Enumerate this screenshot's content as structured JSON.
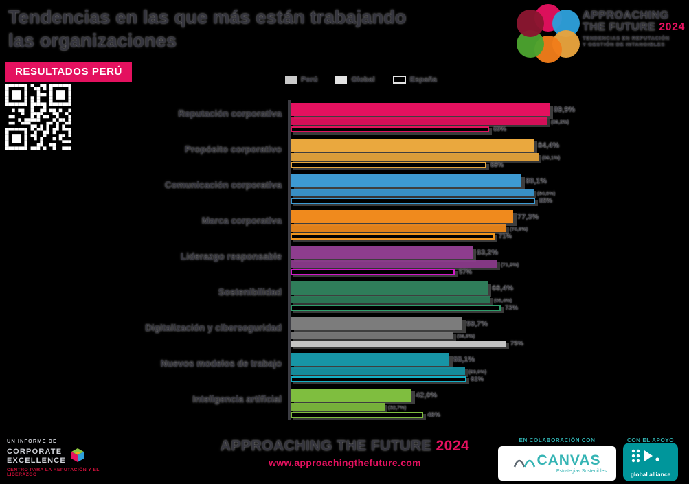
{
  "header": {
    "title_line1": "Tendencias en las que más están trabajando",
    "title_line2": "las organizaciones",
    "badge": "RESULTADOS PERÚ"
  },
  "brand_logo": {
    "line1": "APPROACHING",
    "line2": "THE FUTURE",
    "year": "2024",
    "tagline_line1": "TENDENCIAS EN REPUTACIÓN",
    "tagline_line2": "Y GESTIÓN DE INTANGIBLES",
    "petal_colors": [
      "#E4115F",
      "#2E9FDA",
      "#E8A33D",
      "#F07D1A",
      "#4CA32F",
      "#8A1630"
    ]
  },
  "chart_data": {
    "type": "bar",
    "orientation": "horizontal",
    "legend": [
      "Perú",
      "Global",
      "España"
    ],
    "legend_position": "top",
    "grid": false,
    "xlim": [
      0,
      100
    ],
    "categories": [
      "Reputación corporativa",
      "Propósito corporativo",
      "Comunicación corporativa",
      "Marca corporativa",
      "Liderazgo responsable",
      "Sostenibilidad",
      "Digitalización y ciberseguridad",
      "Nuevos modelos de trabajo",
      "Inteligencia artificial"
    ],
    "series": [
      {
        "name": "Perú",
        "values": [
          89.9,
          84.4,
          80.1,
          77.3,
          63.2,
          68.4,
          59.7,
          55.1,
          42.0
        ],
        "labels": [
          "89,9%",
          "84,4%",
          "80,1%",
          "77,3%",
          "63,2%",
          "68,4%",
          "59,7%",
          "55,1%",
          "42,0%"
        ]
      },
      {
        "name": "Global",
        "values": [
          89.2,
          86.1,
          84.6,
          74.9,
          71.8,
          69.4,
          56.5,
          60.6,
          32.7
        ],
        "labels": [
          "(89,2%)",
          "(86,1%)",
          "(84,6%)",
          "(74,9%)",
          "(71,8%)",
          "(69,4%)",
          "(56,5%)",
          "(60,6%)",
          "(32,7%)"
        ]
      },
      {
        "name": "España",
        "values": [
          69,
          68,
          85,
          71,
          57,
          73,
          75,
          61,
          46
        ],
        "labels": [
          "69%",
          "68%",
          "85%",
          "71%",
          "57%",
          "73%",
          "75%",
          "61%",
          "46%"
        ]
      }
    ],
    "colors": [
      {
        "main": "#E4115F",
        "espana": "#E4115F",
        "espana_filled": false
      },
      {
        "main": "#EAA83E",
        "espana": "#EAA83E",
        "espana_filled": false
      },
      {
        "main": "#3D9AD3",
        "espana": "#3D9AD3",
        "espana_filled": false
      },
      {
        "main": "#F08A1D",
        "espana": "#F0951D",
        "espana_filled": false
      },
      {
        "main": "#8E3D8E",
        "espana": "#D018C8",
        "espana_filled": false
      },
      {
        "main": "#2F7D5A",
        "espana": "#2F9D6A",
        "espana_filled": false
      },
      {
        "main": "#7C7C7C",
        "espana": "#C4C4C4",
        "espana_filled": true
      },
      {
        "main": "#1795A6",
        "espana": "#14B0C6",
        "espana_filled": false
      },
      {
        "main": "#7FBE3F",
        "espana": "#7FBE3F",
        "espana_filled": false
      }
    ]
  },
  "footer": {
    "center_title": "APPROACHING THE FUTURE",
    "center_year": "2024",
    "center_url": "www.approachingthefuture.com",
    "left_label": "UN INFORME DE",
    "left_logo_line1": "CORPORATE",
    "left_logo_line2": "EXCELLENCE",
    "left_logo_subtitle": "CENTRO PARA LA REPUTACIÓN Y EL LIDERAZGO",
    "canvas_label": "EN COLABORACIÓN CON",
    "canvas_name": "CANVAS",
    "canvas_subtitle": "Estrategias Sostenibles",
    "ga_label": "CON EL APOYO DE",
    "ga_name": "global alliance"
  },
  "colors": {
    "accent_pink": "#E4115F",
    "teal": "#2FAFAF",
    "background": "#000000"
  }
}
